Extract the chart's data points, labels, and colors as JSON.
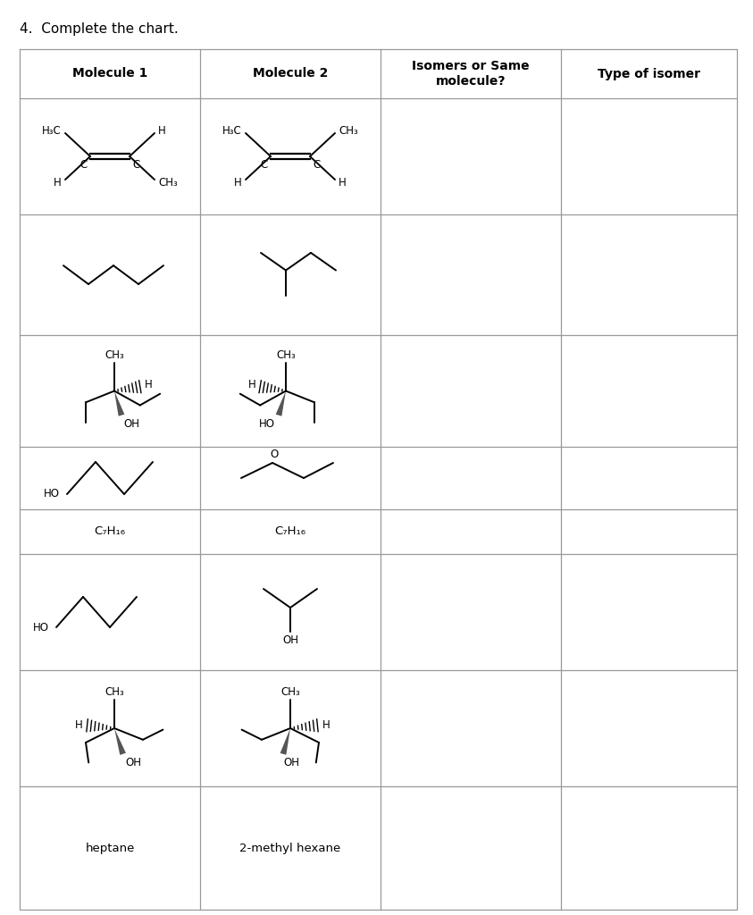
{
  "title": "4.  Complete the chart.",
  "col_headers": [
    "Molecule 1",
    "Molecule 2",
    "Isomers or Same\nmolecule?",
    "Type of isomer"
  ],
  "background": "#ffffff",
  "line_color": "#999999",
  "text_color": "#000000"
}
